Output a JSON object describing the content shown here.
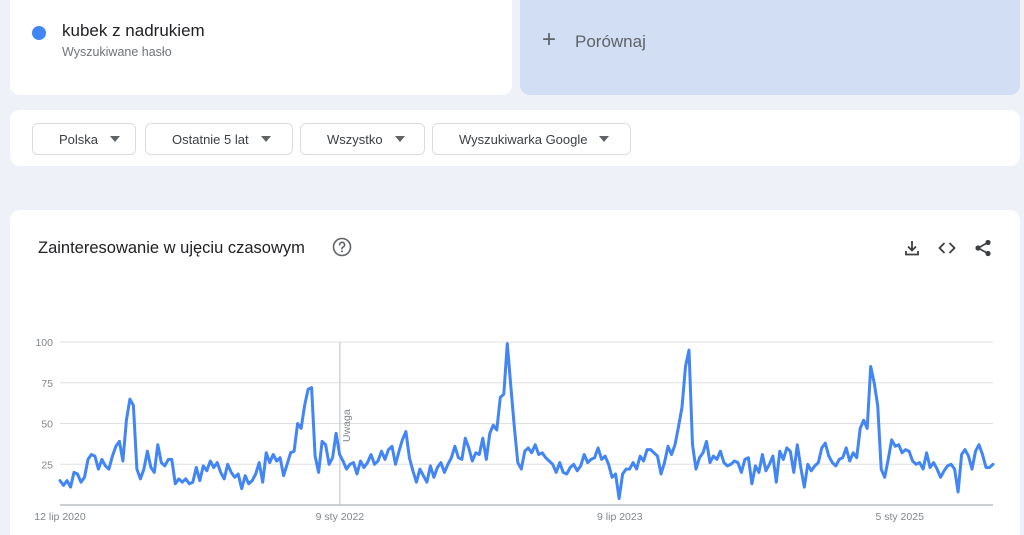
{
  "term": {
    "name": "kubek z nadrukiem",
    "subtitle": "Wyszukiwane hasło",
    "dot_color": "#4285f4"
  },
  "compare": {
    "label": "Porównaj",
    "icon": "plus-icon"
  },
  "filters": [
    {
      "label": "Polska",
      "icon": "caret-down-icon"
    },
    {
      "label": "Ostatnie 5 lat",
      "icon": "caret-down-icon"
    },
    {
      "label": "Wszystko",
      "icon": "caret-down-icon"
    },
    {
      "label": "Wyszukiwarka Google",
      "icon": "caret-down-icon"
    }
  ],
  "chart_card": {
    "title": "Zainteresowanie w ujęciu czasowym",
    "help_icon": "help-icon",
    "tools": [
      "download-icon",
      "embed-code-icon",
      "share-icon"
    ]
  },
  "chart_data": {
    "type": "line",
    "title": "",
    "xlabel": "",
    "ylabel": "",
    "ylim": [
      0,
      100
    ],
    "yticks": [
      25,
      50,
      75,
      100
    ],
    "grid": true,
    "x_tick_labels": [
      "12 lip 2020",
      "9 sty 2022",
      "9 lip 2023",
      "5 sty 2025"
    ],
    "x_range": [
      "2020-07-12",
      "2025-07-06"
    ],
    "annotation": {
      "label": "Uwaga",
      "date": "2022-01-09"
    },
    "series": [
      {
        "color": "#4285f4",
        "values": [
          15,
          12,
          15,
          11,
          20,
          19,
          14,
          17,
          28,
          31,
          30,
          22,
          28,
          24,
          22,
          30,
          36,
          39,
          27,
          52,
          65,
          61,
          22,
          16,
          22,
          33,
          23,
          20,
          37,
          26,
          24,
          28,
          28,
          13,
          16,
          14,
          16,
          13,
          14,
          23,
          15,
          24,
          21,
          27,
          23,
          26,
          20,
          16,
          25,
          20,
          17,
          19,
          10,
          18,
          13,
          15,
          19,
          26,
          14,
          32,
          26,
          31,
          27,
          29,
          18,
          25,
          32,
          33,
          50,
          47,
          61,
          71,
          72,
          30,
          20,
          39,
          37,
          25,
          29,
          44,
          31,
          27,
          22,
          25,
          26,
          19,
          27,
          23,
          26,
          31,
          25,
          27,
          33,
          28,
          34,
          36,
          25,
          33,
          40,
          45,
          29,
          21,
          14,
          22,
          18,
          14,
          24,
          17,
          23,
          26,
          20,
          25,
          29,
          36,
          29,
          28,
          41,
          35,
          27,
          32,
          31,
          41,
          28,
          44,
          49,
          46,
          66,
          68,
          99,
          73,
          48,
          26,
          22,
          33,
          35,
          32,
          37,
          31,
          32,
          29,
          27,
          25,
          20,
          26,
          20,
          19,
          23,
          25,
          21,
          24,
          31,
          26,
          28,
          29,
          35,
          28,
          30,
          25,
          17,
          19,
          4,
          19,
          22,
          22,
          26,
          22,
          30,
          27,
          34,
          34,
          32,
          30,
          19,
          26,
          36,
          31,
          37,
          48,
          60,
          85,
          95,
          37,
          22,
          29,
          32,
          39,
          26,
          30,
          28,
          33,
          26,
          24,
          25,
          27,
          26,
          20,
          28,
          29,
          13,
          24,
          20,
          31,
          21,
          25,
          30,
          14,
          33,
          28,
          35,
          33,
          20,
          37,
          23,
          11,
          25,
          21,
          24,
          26,
          35,
          38,
          30,
          26,
          24,
          28,
          29,
          35,
          27,
          32,
          29,
          47,
          52,
          47,
          85,
          75,
          61,
          22,
          17,
          28,
          40,
          36,
          37,
          32,
          34,
          33,
          27,
          25,
          26,
          22,
          32,
          23,
          26,
          22,
          17,
          21,
          24,
          25,
          22,
          8,
          31,
          34,
          30,
          22,
          33,
          37,
          31,
          23,
          23,
          25
        ]
      }
    ]
  }
}
